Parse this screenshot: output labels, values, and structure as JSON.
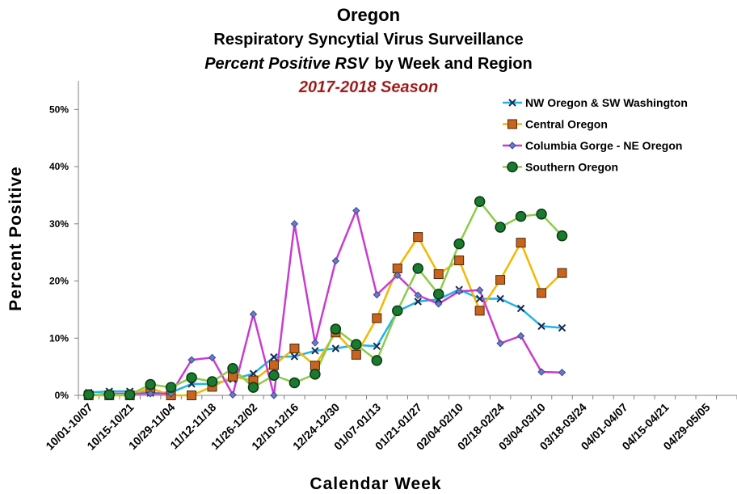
{
  "chart_data": {
    "type": "line",
    "title": "Oregon",
    "subtitle": "Respiratory Syncytial Virus Surveillance",
    "subtitle_italic": "Percent Positive RSV",
    "subtitle_rest": "by Week and Region",
    "season": "2017-2018 Season",
    "x_label": "Calendar Week",
    "y_label": "Percent Positive",
    "categories": [
      "10/01-10/07",
      null,
      "10/15-10/21",
      null,
      "10/29-11/04",
      null,
      "11/12-11/18",
      null,
      "11/26-12/02",
      null,
      "12/10-12/16",
      null,
      "12/24-12/30",
      null,
      "01/07-01/13",
      null,
      "01/21-01/27",
      null,
      "02/04-02/10",
      null,
      "02/18-02/24",
      null,
      "03/04-03/10",
      null,
      "03/18-03/24",
      null,
      "04/01-04/07",
      null,
      "04/15-04/21",
      null,
      "04/29-05/05",
      null
    ],
    "ylim": [
      0,
      55
    ],
    "yticks": [
      {
        "value": 0,
        "label": "0%"
      },
      {
        "value": 10,
        "label": "10%"
      },
      {
        "value": 20,
        "label": "20%"
      },
      {
        "value": 30,
        "label": "30%"
      },
      {
        "value": 40,
        "label": "40%"
      },
      {
        "value": 50,
        "label": "50%"
      }
    ],
    "grid": false,
    "legend": "upper right",
    "series": [
      {
        "name": "NW Oregon & SW Washington",
        "color": "#1fb4e8",
        "marker": "x",
        "values": [
          0.5,
          0.7,
          0.7,
          0.4,
          0.5,
          2,
          2,
          2.8,
          3.8,
          6.7,
          6.8,
          7.8,
          8.2,
          8.8,
          8.6,
          14.7,
          16.4,
          16.8,
          18.5,
          16.9,
          16.9,
          15.2,
          12.1,
          11.8,
          null,
          null,
          null,
          null,
          null,
          null,
          null,
          null
        ]
      },
      {
        "name": "Central Oregon",
        "color": "#f5b800",
        "marker": "square",
        "values": [
          0,
          0,
          0,
          1.3,
          0,
          0,
          1.5,
          3.3,
          2.6,
          5.3,
          8.2,
          5.2,
          11,
          7.1,
          13.5,
          22.2,
          27.7,
          21.2,
          23.6,
          14.8,
          20.2,
          26.7,
          17.9,
          21.4,
          null,
          null,
          null,
          null,
          null,
          null,
          null,
          null
        ]
      },
      {
        "name": "Columbia Gorge - NE Oregon",
        "color": "#c83ccf",
        "marker": "diamond",
        "values": [
          0,
          0.3,
          0.3,
          0.3,
          0.3,
          6.2,
          6.6,
          0.1,
          14.2,
          0,
          30,
          9.2,
          23.5,
          32.3,
          17.6,
          21,
          17.5,
          16,
          18.2,
          18.4,
          9.1,
          10.4,
          4.1,
          4,
          null,
          null,
          null,
          null,
          null,
          null,
          null,
          null
        ]
      },
      {
        "name": "Southern Oregon",
        "color": "#8ccc4a",
        "marker": "circle",
        "values": [
          0.1,
          0.1,
          0.1,
          1.9,
          1.4,
          3.1,
          2.4,
          4.7,
          1.4,
          3.5,
          2.2,
          3.7,
          11.6,
          8.9,
          6.1,
          14.8,
          22.2,
          17.7,
          26.5,
          33.9,
          29.4,
          31.3,
          31.7,
          27.9,
          null,
          null,
          null,
          null,
          null,
          null,
          null,
          null
        ]
      }
    ]
  }
}
